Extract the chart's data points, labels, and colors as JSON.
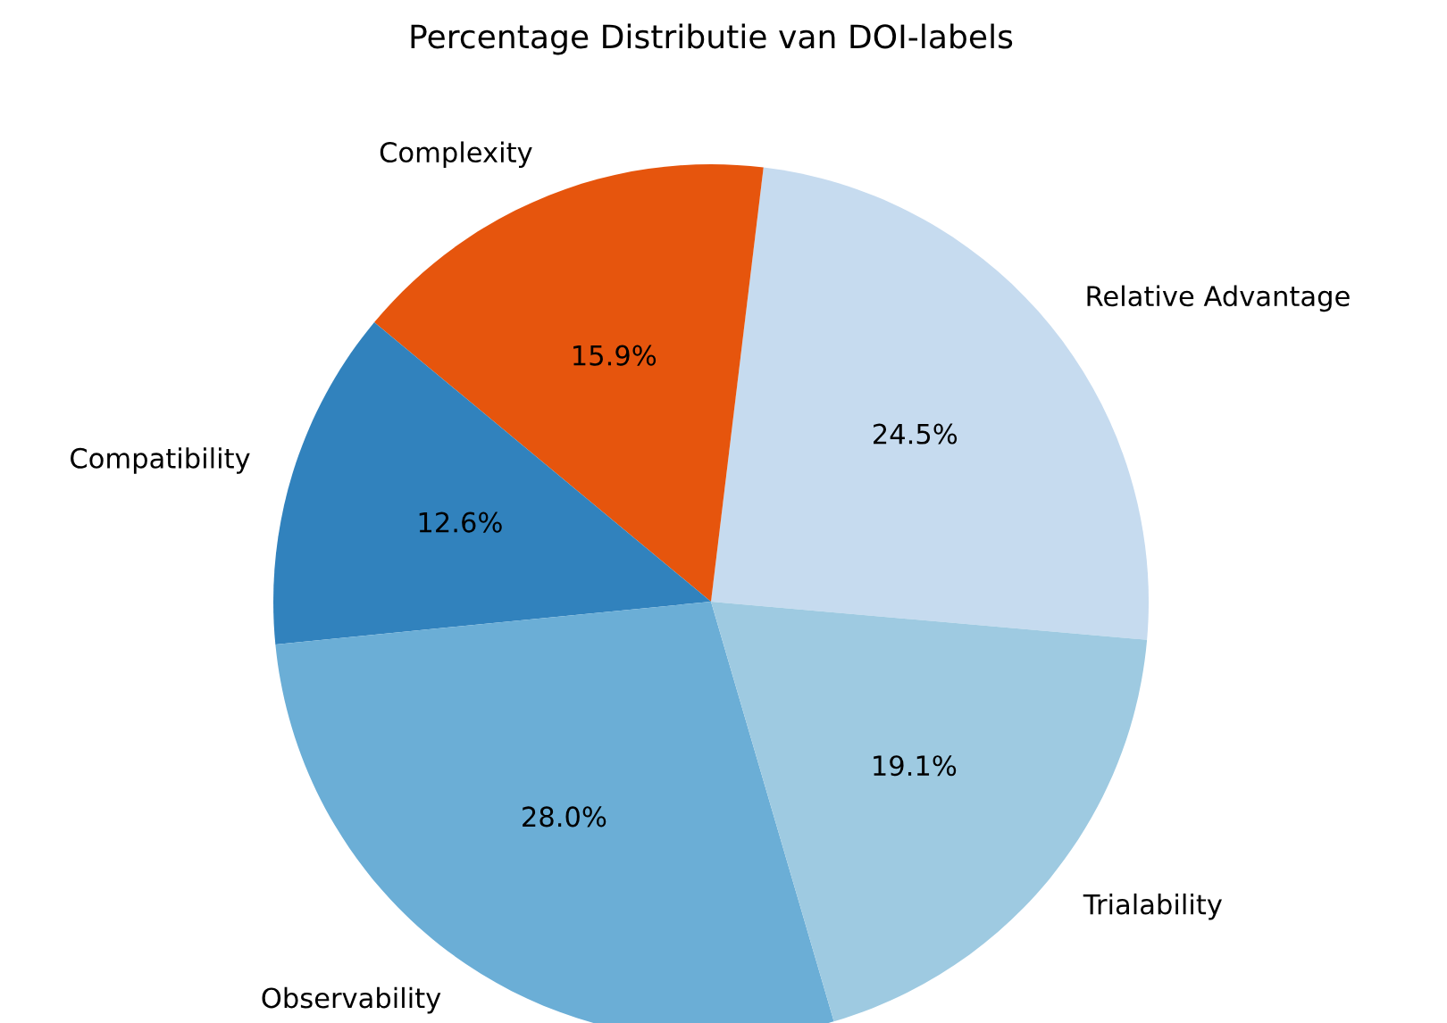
{
  "chart_data": {
    "type": "pie",
    "title": "Percentage Distributie van DOI-labels",
    "categories": [
      "Relative Advantage",
      "Complexity",
      "Compatibility",
      "Observability",
      "Trialability"
    ],
    "values": [
      24.5,
      15.9,
      12.6,
      28.0,
      19.1
    ],
    "colors": [
      "#c6dbef",
      "#e6550d",
      "#3182bd",
      "#6baed6",
      "#9ecae1"
    ],
    "value_labels": [
      "24.5%",
      "15.9%",
      "12.6%",
      "28.0%",
      "19.1%"
    ]
  }
}
